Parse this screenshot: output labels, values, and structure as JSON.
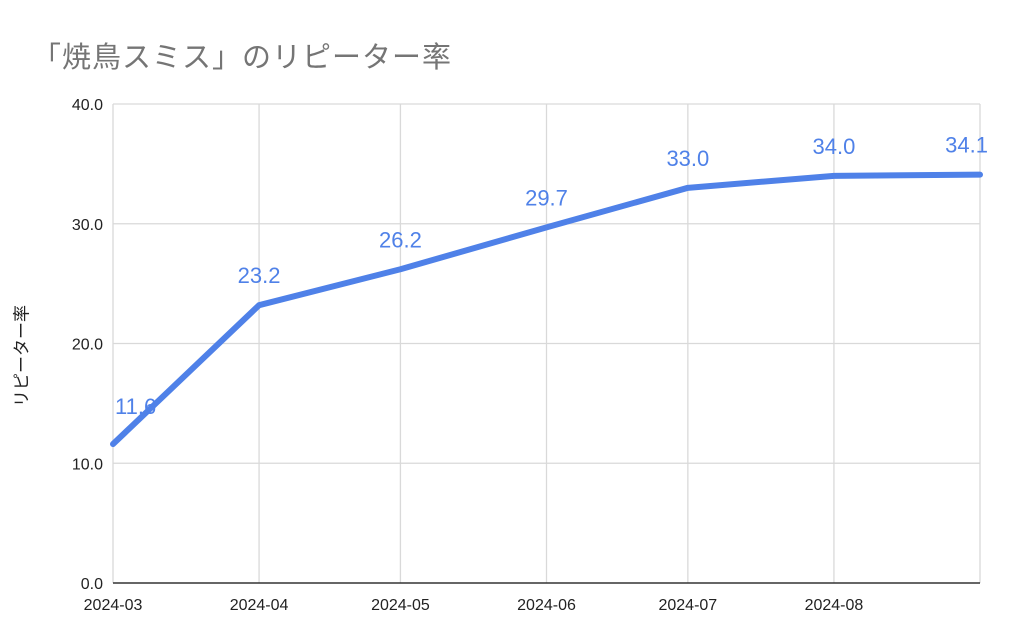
{
  "chart_data": {
    "type": "line",
    "title": "「焼鳥スミス」のリピーター率",
    "xlabel": "",
    "ylabel": "リピーター率",
    "x": [
      "2024-03-01",
      "2024-04-01",
      "2024-05-01",
      "2024-06-01",
      "2024-07-01",
      "2024-08-01",
      "2024-09-01"
    ],
    "series": [
      {
        "values": [
          11.6,
          23.2,
          26.2,
          29.7,
          33.0,
          34.0,
          34.1
        ],
        "data_labels": [
          "11.6",
          "23.2",
          "26.2",
          "29.7",
          "33.0",
          "34.0",
          "34.1"
        ],
        "color": "#4f81e8"
      }
    ],
    "x_ticks": [
      {
        "date": "2024-03-01",
        "label": "2024-03"
      },
      {
        "date": "2024-04-01",
        "label": "2024-04"
      },
      {
        "date": "2024-05-01",
        "label": "2024-05"
      },
      {
        "date": "2024-06-01",
        "label": "2024-06"
      },
      {
        "date": "2024-07-01",
        "label": "2024-07"
      },
      {
        "date": "2024-08-01",
        "label": "2024-08"
      }
    ],
    "xlim": [
      "2024-03-01",
      "2024-09-01"
    ],
    "y_ticks": [
      "0.0",
      "10.0",
      "20.0",
      "30.0",
      "40.0"
    ],
    "ylim": [
      0,
      40
    ],
    "grid": true,
    "legend": "none"
  }
}
